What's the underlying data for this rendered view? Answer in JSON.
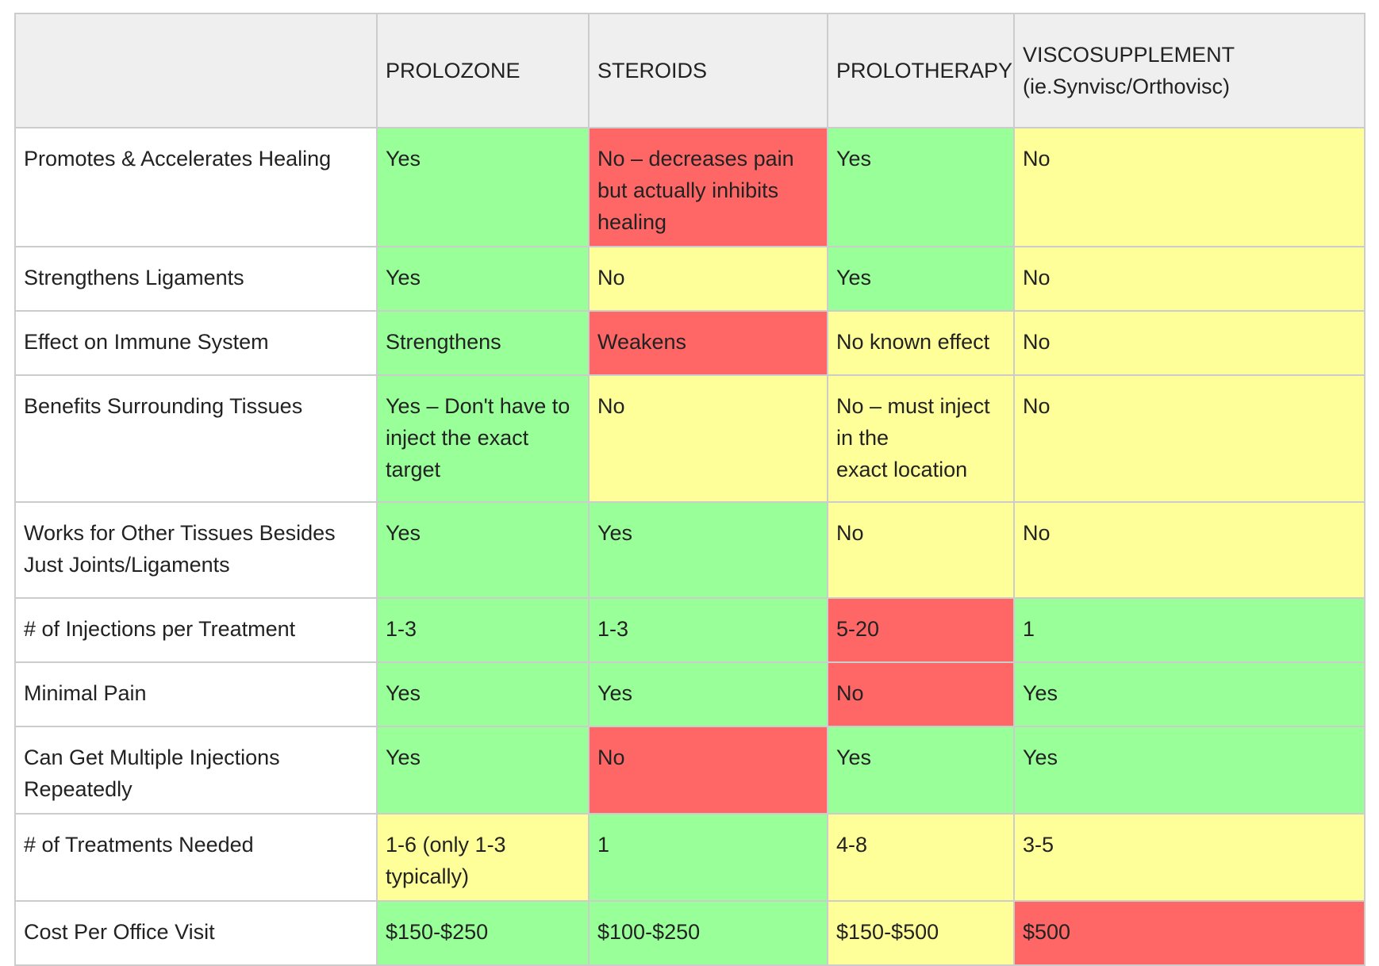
{
  "colors": {
    "green": "#99ff99",
    "yellow": "#ffff99",
    "red": "#ff6666",
    "header_bg": "#efefef",
    "border": "#cccccc"
  },
  "table": {
    "corner": "",
    "columns": [
      {
        "lines": [
          "PROLOZONE"
        ]
      },
      {
        "lines": [
          "STEROIDS"
        ]
      },
      {
        "lines": [
          "PROLOTHERAPY"
        ]
      },
      {
        "lines": [
          "VISCOSUPPLEMENT",
          "(ie.Synvisc/Orthovisc)"
        ]
      }
    ],
    "rows": [
      {
        "label": "Promotes & Accelerates Healing",
        "cells": [
          {
            "text": "Yes",
            "color": "green"
          },
          {
            "text": "No – decreases pain but actually inhibits healing",
            "color": "red"
          },
          {
            "text": "Yes",
            "color": "green"
          },
          {
            "text": "No",
            "color": "yellow"
          }
        ]
      },
      {
        "label": "Strengthens Ligaments",
        "cells": [
          {
            "text": "Yes",
            "color": "green"
          },
          {
            "text": "No",
            "color": "yellow"
          },
          {
            "text": "Yes",
            "color": "green"
          },
          {
            "text": "No",
            "color": "yellow"
          }
        ]
      },
      {
        "label": "Effect on Immune System",
        "cells": [
          {
            "text": "Strengthens",
            "color": "green"
          },
          {
            "text": "Weakens",
            "color": "red"
          },
          {
            "text": "No known effect",
            "color": "yellow"
          },
          {
            "text": "No",
            "color": "yellow"
          }
        ]
      },
      {
        "label": "Benefits Surrounding Tissues",
        "cells": [
          {
            "text": "Yes – Don't have to inject the exact target",
            "color": "green"
          },
          {
            "text": "No",
            "color": "yellow"
          },
          {
            "text": "No – must inject in the",
            "text2": "exact location",
            "color": "yellow"
          },
          {
            "text": "No",
            "color": "yellow"
          }
        ]
      },
      {
        "label": "Works for Other Tissues Besides Just Joints/Ligaments",
        "cells": [
          {
            "text": "Yes",
            "color": "green"
          },
          {
            "text": "Yes",
            "color": "green"
          },
          {
            "text": "No",
            "color": "yellow"
          },
          {
            "text": "No",
            "color": "yellow"
          }
        ]
      },
      {
        "label": "# of Injections per Treatment",
        "cells": [
          {
            "text": "1-3",
            "color": "green"
          },
          {
            "text": "1-3",
            "color": "green"
          },
          {
            "text": "5-20",
            "color": "red"
          },
          {
            "text": "1",
            "color": "green"
          }
        ]
      },
      {
        "label": "Minimal Pain",
        "cells": [
          {
            "text": "Yes",
            "color": "green"
          },
          {
            "text": "Yes",
            "color": "green"
          },
          {
            "text": "No",
            "color": "red"
          },
          {
            "text": "Yes",
            "color": "green"
          }
        ]
      },
      {
        "label": "Can Get Multiple Injections Repeatedly",
        "cells": [
          {
            "text": "Yes",
            "color": "green"
          },
          {
            "text": "No",
            "color": "red"
          },
          {
            "text": "Yes",
            "color": "green"
          },
          {
            "text": "Yes",
            "color": "green"
          }
        ]
      },
      {
        "label": "# of Treatments Needed",
        "cells": [
          {
            "text": "1-6 (only 1-3 typically)",
            "color": "yellow"
          },
          {
            "text": "1",
            "color": "green"
          },
          {
            "text": "4-8",
            "color": "yellow"
          },
          {
            "text": "3-5",
            "color": "yellow"
          }
        ]
      },
      {
        "label": "Cost Per Office Visit",
        "cells": [
          {
            "text": "$150-$250",
            "color": "green"
          },
          {
            "text": "$100-$250",
            "color": "green"
          },
          {
            "text": "$150-$500",
            "color": "yellow"
          },
          {
            "text": "$500",
            "color": "red"
          }
        ]
      }
    ]
  }
}
